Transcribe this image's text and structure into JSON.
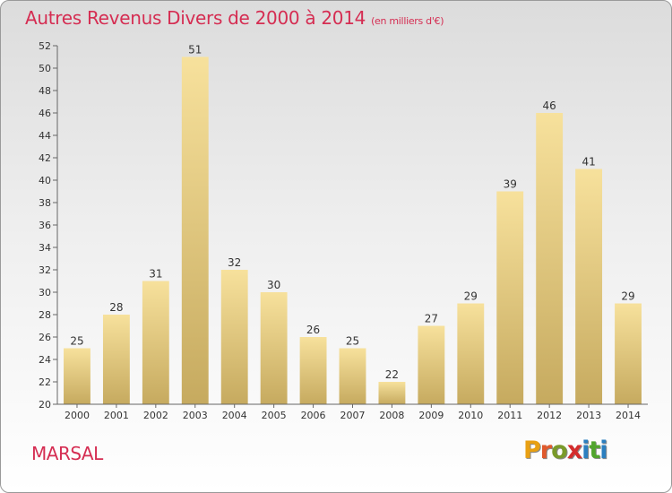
{
  "title": "Autres Revenus Divers de 2000 à 2014",
  "unit_note": "(en milliers d'€)",
  "commune": "MARSAL",
  "logo": {
    "letters": [
      "P",
      "r",
      "o",
      "x",
      "i",
      "t",
      "i"
    ],
    "colors": [
      "#e8a013",
      "#e05a2d",
      "#7a9a2a",
      "#d42d2d",
      "#2b7fc0",
      "#52a52e",
      "#2b7fc0"
    ]
  },
  "colors": {
    "title": "#d52d52",
    "bar_light": "#f6df9a",
    "bar_dark": "#c5aa5e"
  },
  "chart_data": {
    "type": "bar",
    "categories": [
      "2000",
      "2001",
      "2002",
      "2003",
      "2004",
      "2005",
      "2006",
      "2007",
      "2008",
      "2009",
      "2010",
      "2011",
      "2012",
      "2013",
      "2014"
    ],
    "values": [
      25,
      28,
      31,
      51,
      32,
      30,
      26,
      25,
      22,
      27,
      29,
      39,
      46,
      41,
      29
    ],
    "ylim": [
      20,
      52
    ],
    "yticks": [
      20,
      22,
      24,
      26,
      28,
      30,
      32,
      34,
      36,
      38,
      40,
      42,
      44,
      46,
      48,
      50,
      52
    ],
    "grid": false,
    "legend": "none"
  }
}
